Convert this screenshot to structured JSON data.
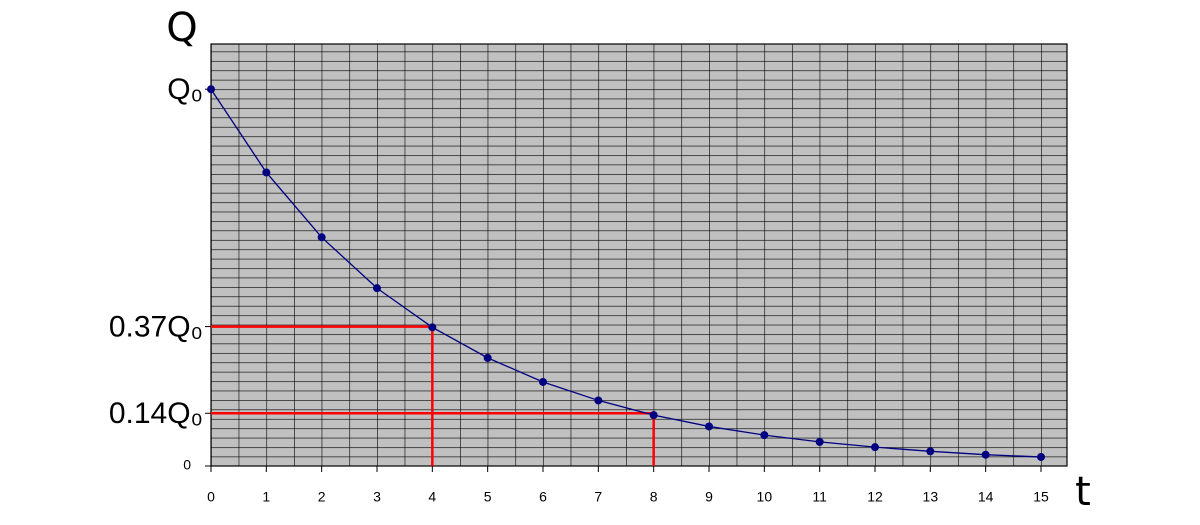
{
  "chart_data": {
    "type": "line",
    "x": [
      0,
      1,
      2,
      3,
      4,
      5,
      6,
      7,
      8,
      9,
      10,
      11,
      12,
      13,
      14,
      15
    ],
    "series": [
      {
        "color": "#000080",
        "values": [
          1,
          0.779,
          0.607,
          0.472,
          0.368,
          0.287,
          0.223,
          0.174,
          0.135,
          0.105,
          0.082,
          0.064,
          0.05,
          0.039,
          0.03,
          0.024
        ]
      }
    ],
    "xlim": [
      0,
      15.47
    ],
    "ylim": [
      0,
      1.12
    ],
    "xticks": [
      0,
      1,
      2,
      3,
      4,
      5,
      6,
      7,
      8,
      9,
      10,
      11,
      12,
      13,
      14,
      15
    ],
    "yticks": [
      0,
      {
        "value": 0.14,
        "label": "0.14Q₀"
      },
      {
        "value": 0.37,
        "label": "0.37Q₀"
      },
      {
        "value": 1,
        "label": "Q₀"
      }
    ],
    "x_label": "t",
    "y_label": "Q",
    "grid": true,
    "grid_x_step": 0.5,
    "grid_y_step": 0.025,
    "plot_background": "#c0c0c0",
    "guides": [
      {
        "x": 4,
        "y": 0.37
      },
      {
        "x": 8,
        "y": 0.14
      }
    ],
    "guide_color": "#ff0000"
  }
}
